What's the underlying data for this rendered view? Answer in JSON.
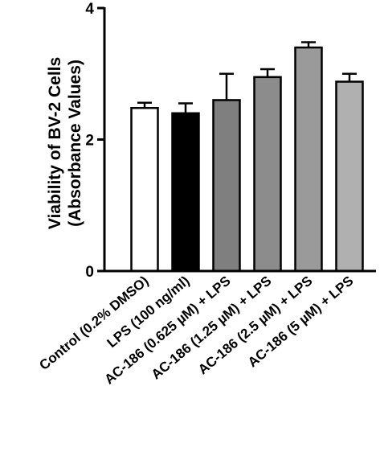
{
  "chart_data": {
    "type": "bar",
    "title": "",
    "ylabel_line1": "Viability of BV-2 Cells",
    "ylabel_line2": "(Absorbance Values)",
    "xlabel": "",
    "ylim": [
      0,
      4
    ],
    "yticks": [
      "0",
      "2",
      "4"
    ],
    "grid": false,
    "categories": [
      "Control (0.2% DMSO)",
      "LPS (100 ng/ml)",
      "AC-186 (0.625 µM) + LPS",
      "AC-186 (1.25 µM) + LPS",
      "AC-186 (2.5 µM) + LPS",
      "AC-186 (5 µM) + LPS"
    ],
    "values": [
      2.48,
      2.4,
      2.6,
      2.95,
      3.4,
      2.88
    ],
    "errors": [
      0.08,
      0.15,
      0.4,
      0.12,
      0.08,
      0.12
    ],
    "colors": [
      "#ffffff",
      "#000000",
      "#7f7f7f",
      "#8c8c8c",
      "#9a9a9a",
      "#b0b0b0"
    ]
  }
}
